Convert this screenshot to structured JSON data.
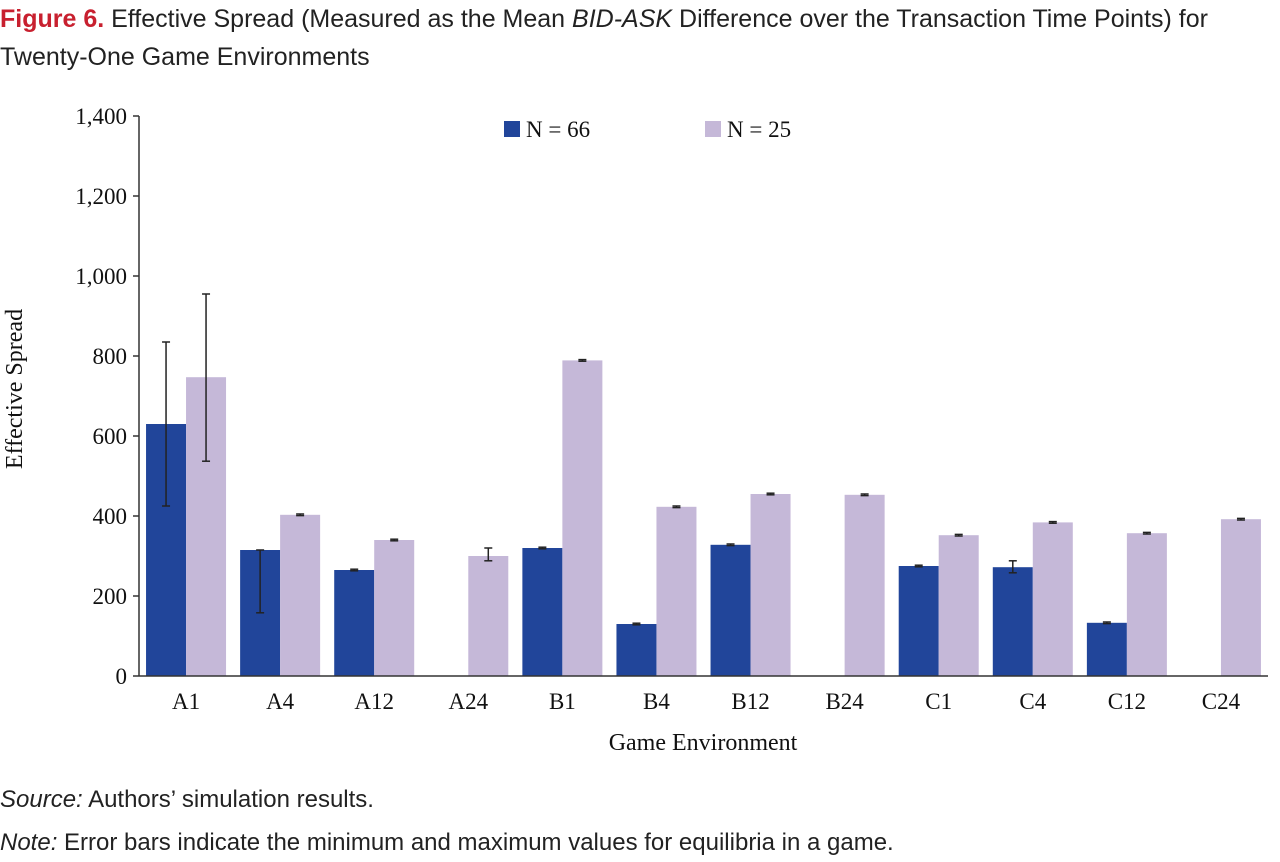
{
  "caption": {
    "label": "Figure 6.",
    "text_before": " Effective Spread (Measured as the Mean ",
    "italic": "BID-ASK",
    "text_after": " Difference over the Transaction Time Points) for Twenty-One Game Environments"
  },
  "footnotes": {
    "source_label": "Source:",
    "source_text": " Authors’ simulation results.",
    "note_label": "Note:",
    "note_text": " Error bars indicate the minimum and maximum values for equilibria in a game."
  },
  "colors": {
    "n66": "#21459a",
    "n25": "#c5b8d8",
    "axis": "#333333"
  },
  "chart_data": {
    "type": "bar",
    "xlabel": "Game Environment",
    "ylabel": "Effective Spread",
    "ylim": [
      0,
      1400
    ],
    "yticks": [
      0,
      200,
      400,
      600,
      800,
      1000,
      1200,
      1400
    ],
    "ytick_labels": [
      "0",
      "200",
      "400",
      "600",
      "800",
      "1,000",
      "1,200",
      "1,400"
    ],
    "legend_position": "top-center",
    "grid": false,
    "categories": [
      "A1",
      "A4",
      "A12",
      "A24",
      "B1",
      "B4",
      "B12",
      "B24",
      "C1",
      "C4",
      "C12",
      "C24"
    ],
    "series": [
      {
        "name": "N = 66",
        "values": [
          630,
          315,
          265,
          null,
          320,
          130,
          328,
          null,
          275,
          272,
          133,
          null
        ],
        "err_min": [
          425,
          158,
          263,
          null,
          318,
          128,
          326,
          null,
          273,
          258,
          131,
          null
        ],
        "err_max": [
          835,
          315,
          267,
          null,
          322,
          132,
          330,
          null,
          277,
          288,
          135,
          null
        ]
      },
      {
        "name": "N = 25",
        "values": [
          747,
          403,
          340,
          300,
          789,
          423,
          455,
          453,
          352,
          384,
          357,
          392
        ],
        "err_min": [
          537,
          401,
          338,
          288,
          787,
          421,
          453,
          451,
          350,
          382,
          355,
          390
        ],
        "err_max": [
          955,
          405,
          342,
          320,
          791,
          425,
          457,
          455,
          354,
          386,
          359,
          394
        ]
      }
    ]
  }
}
